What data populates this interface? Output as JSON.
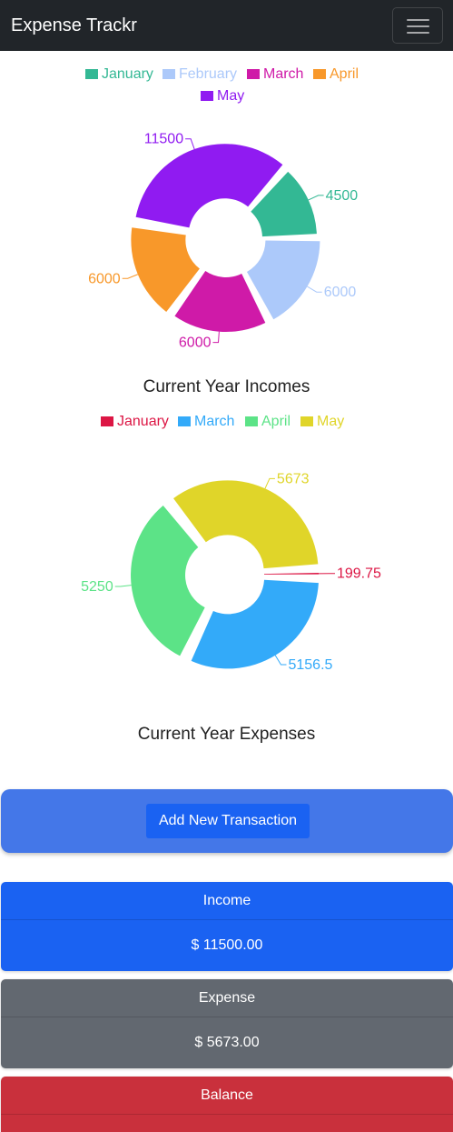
{
  "navbar": {
    "brand": "Expense Trackr",
    "menu_icon": "hamburger-icon"
  },
  "income_chart": {
    "title": "Current Year Incomes",
    "legend": [
      {
        "label": "January",
        "color": "#33b894"
      },
      {
        "label": "February",
        "color": "#acc9fa"
      },
      {
        "label": "March",
        "color": "#cf1aa8"
      },
      {
        "label": "April",
        "color": "#f8982a"
      },
      {
        "label": "May",
        "color": "#901bf1"
      }
    ]
  },
  "expense_chart": {
    "title": "Current Year Expenses",
    "legend": [
      {
        "label": "January",
        "color": "#dc1644"
      },
      {
        "label": "March",
        "color": "#33aaf9"
      },
      {
        "label": "April",
        "color": "#5ce387"
      },
      {
        "label": "May",
        "color": "#e0d529"
      }
    ]
  },
  "chart_data": [
    {
      "type": "pie",
      "categories": [
        "January",
        "February",
        "March",
        "April",
        "May"
      ],
      "values": [
        4500,
        6000,
        6000,
        6000,
        11500
      ],
      "colors": [
        "#33b894",
        "#acc9fa",
        "#cf1aa8",
        "#f8982a",
        "#901bf1"
      ],
      "data_labels": [
        "4500",
        "6000",
        "6000",
        "6000",
        "11500"
      ],
      "title": "Current Year Incomes",
      "legend_position": "top",
      "donut": true
    },
    {
      "type": "pie",
      "categories": [
        "January",
        "March",
        "April",
        "May"
      ],
      "values": [
        199.75,
        5156.5,
        5250,
        5673
      ],
      "colors": [
        "#dc1644",
        "#33aaf9",
        "#5ce387",
        "#e0d529"
      ],
      "data_labels": [
        "199.75",
        "5156.5",
        "5250",
        "5673"
      ],
      "title": "Current Year Expenses",
      "legend_position": "top",
      "donut": true
    }
  ],
  "actions": {
    "add_transaction": "Add New Transaction"
  },
  "summary": {
    "income": {
      "label": "Income",
      "value": "$ 11500.00",
      "color": "#1a62f2"
    },
    "expense": {
      "label": "Expense",
      "value": "$ 5673.00",
      "color": "#626870"
    },
    "balance": {
      "label": "Balance",
      "value": "",
      "color": "#c9303c"
    }
  }
}
